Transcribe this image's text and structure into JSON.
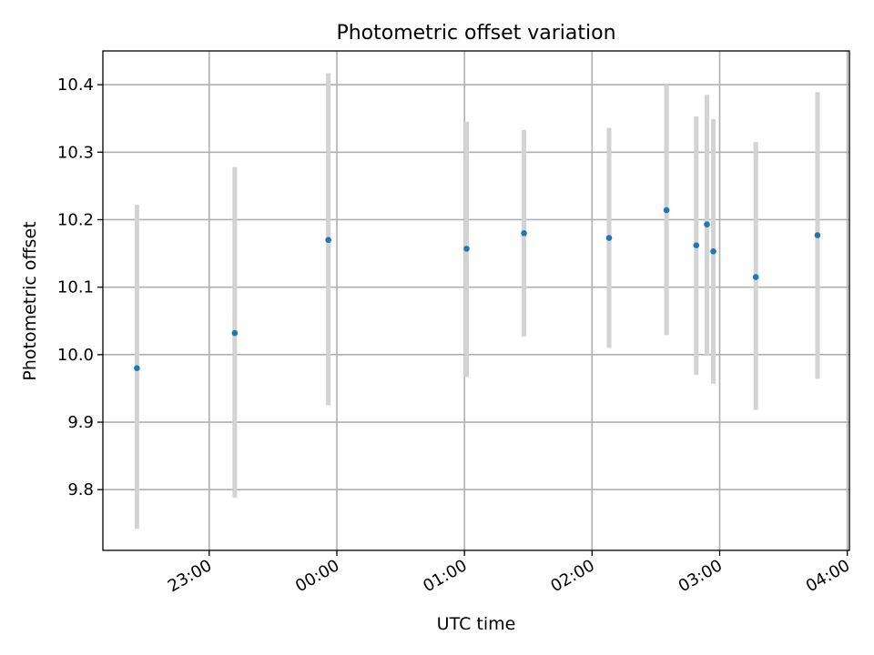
{
  "chart_data": {
    "type": "scatter",
    "title": "Photometric offset variation",
    "xlabel": "UTC time",
    "ylabel": "Photometric offset",
    "x_ticks": [
      "23:00",
      "00:00",
      "01:00",
      "02:00",
      "03:00",
      "04:00"
    ],
    "y_ticks": [
      "9.8",
      "9.9",
      "10.0",
      "10.1",
      "10.2",
      "10.3",
      "10.4"
    ],
    "x_tick_times": [
      "23:00",
      "00:00",
      "01:00",
      "02:00",
      "03:00",
      "04:00"
    ],
    "y_tick_values": [
      9.8,
      9.9,
      10.0,
      10.1,
      10.2,
      10.3,
      10.4
    ],
    "xlim": [
      "22:10",
      "04:01"
    ],
    "ylim": [
      9.71,
      10.45
    ],
    "grid": true,
    "marker_color": "#1f77b4",
    "errorbar_color": "#d3d3d3",
    "points": [
      {
        "time": "22:26",
        "y": 9.98,
        "err_low": 9.742,
        "err_high": 10.222
      },
      {
        "time": "23:12",
        "y": 10.032,
        "err_low": 9.788,
        "err_high": 10.278
      },
      {
        "time": "23:56",
        "y": 10.17,
        "err_low": 9.925,
        "err_high": 10.417
      },
      {
        "time": "01:01",
        "y": 10.157,
        "err_low": 9.967,
        "err_high": 10.345
      },
      {
        "time": "01:28",
        "y": 10.18,
        "err_low": 10.027,
        "err_high": 10.333
      },
      {
        "time": "02:08",
        "y": 10.173,
        "err_low": 10.01,
        "err_high": 10.336
      },
      {
        "time": "02:35",
        "y": 10.214,
        "err_low": 10.029,
        "err_high": 10.4
      },
      {
        "time": "02:49",
        "y": 10.162,
        "err_low": 9.97,
        "err_high": 10.353
      },
      {
        "time": "02:54",
        "y": 10.193,
        "err_low": 10.0,
        "err_high": 10.385
      },
      {
        "time": "02:57",
        "y": 10.153,
        "err_low": 9.957,
        "err_high": 10.349
      },
      {
        "time": "03:17",
        "y": 10.115,
        "err_low": 9.918,
        "err_high": 10.315
      },
      {
        "time": "03:46",
        "y": 10.177,
        "err_low": 9.964,
        "err_high": 10.389
      }
    ]
  }
}
